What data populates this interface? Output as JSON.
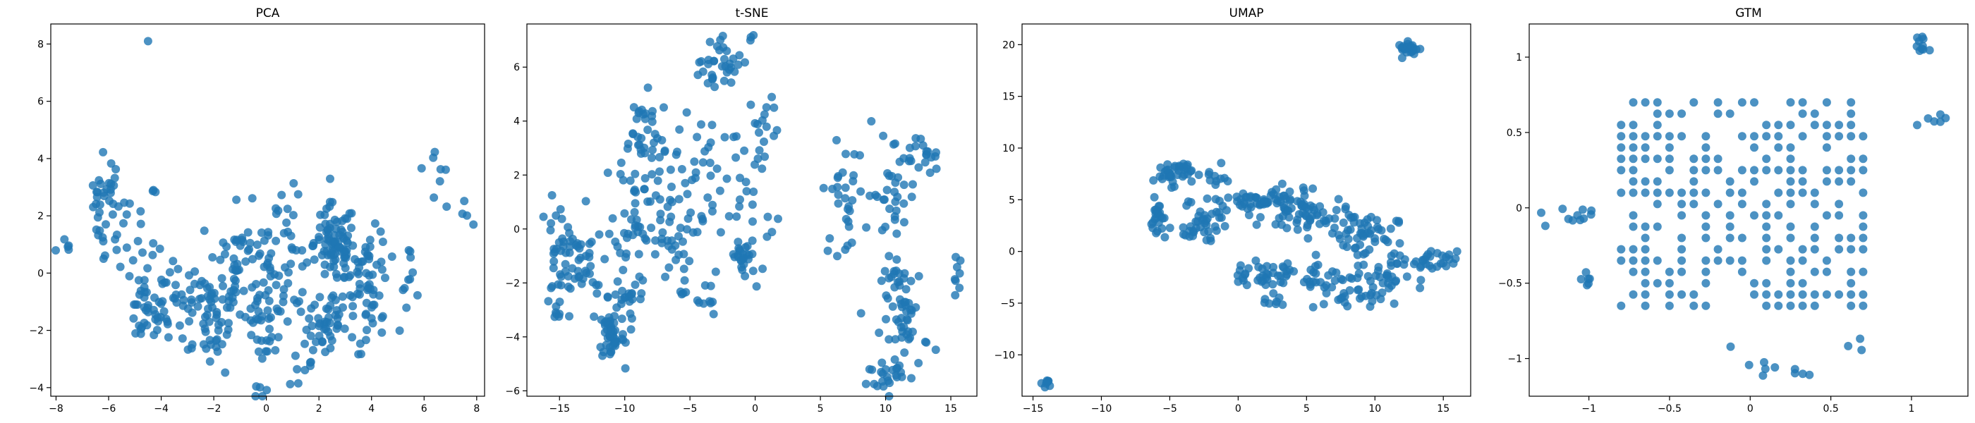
{
  "figure": {
    "background": "#ffffff",
    "point_color": "#1f77b4",
    "point_alpha": 0.8
  },
  "chart_data": [
    {
      "type": "scatter",
      "title": "PCA",
      "xlabel": "",
      "ylabel": "",
      "xlim": [
        -8.2,
        8.3
      ],
      "ylim": [
        -4.3,
        8.7
      ],
      "xticks": [
        -8,
        -6,
        -4,
        -2,
        0,
        2,
        4,
        6,
        8
      ],
      "yticks": [
        -4,
        -2,
        0,
        2,
        4,
        6,
        8
      ],
      "grid": false,
      "legend": "none",
      "clusters": [
        {
          "center": [
            -4.5,
            8.1
          ],
          "spread": [
            0.0,
            0.0
          ],
          "count": 1
        },
        {
          "center": [
            -7.6,
            0.9
          ],
          "spread": [
            0.2,
            0.2
          ],
          "count": 5
        },
        {
          "center": [
            -6.1,
            2.6
          ],
          "spread": [
            0.3,
            0.8
          ],
          "count": 30
        },
        {
          "center": [
            -5.2,
            1.4
          ],
          "spread": [
            0.6,
            1.0
          ],
          "count": 25
        },
        {
          "center": [
            -4.6,
            -1.5
          ],
          "spread": [
            0.4,
            0.5
          ],
          "count": 30
        },
        {
          "center": [
            -3.6,
            -0.7
          ],
          "spread": [
            0.6,
            0.8
          ],
          "count": 30
        },
        {
          "center": [
            -2.2,
            -1.4
          ],
          "spread": [
            0.7,
            1.0
          ],
          "count": 60
        },
        {
          "center": [
            -1.1,
            0.3
          ],
          "spread": [
            0.7,
            1.0
          ],
          "count": 50
        },
        {
          "center": [
            0.0,
            -1.0
          ],
          "spread": [
            0.4,
            1.4
          ],
          "count": 60
        },
        {
          "center": [
            0.9,
            0.8
          ],
          "spread": [
            0.5,
            1.0
          ],
          "count": 25
        },
        {
          "center": [
            1.9,
            -2.4
          ],
          "spread": [
            0.5,
            0.8
          ],
          "count": 30
        },
        {
          "center": [
            2.6,
            1.0
          ],
          "spread": [
            0.4,
            0.7
          ],
          "count": 80
        },
        {
          "center": [
            2.8,
            -1.6
          ],
          "spread": [
            0.5,
            0.6
          ],
          "count": 30
        },
        {
          "center": [
            3.9,
            0.3
          ],
          "spread": [
            0.4,
            0.6
          ],
          "count": 40
        },
        {
          "center": [
            4.0,
            -1.8
          ],
          "spread": [
            0.3,
            0.5
          ],
          "count": 15
        },
        {
          "center": [
            5.3,
            0.0
          ],
          "spread": [
            0.4,
            0.5
          ],
          "count": 12
        },
        {
          "center": [
            6.6,
            3.6
          ],
          "spread": [
            0.3,
            0.7
          ],
          "count": 8
        },
        {
          "center": [
            7.4,
            2.2
          ],
          "spread": [
            0.2,
            0.3
          ],
          "count": 4
        }
      ]
    },
    {
      "type": "scatter",
      "title": "t-SNE",
      "xlabel": "",
      "ylabel": "",
      "xlim": [
        -17.5,
        17.0
      ],
      "ylim": [
        -6.2,
        7.6
      ],
      "xticks": [
        -15,
        -10,
        -5,
        0,
        5,
        10,
        15
      ],
      "yticks": [
        -6,
        -4,
        -2,
        0,
        2,
        4,
        6
      ],
      "grid": false,
      "legend": "none",
      "clusters": [
        {
          "center": [
            -14.8,
            -1.0
          ],
          "spread": [
            0.9,
            1.0
          ],
          "count": 45
        },
        {
          "center": [
            -15.3,
            -3.2
          ],
          "spread": [
            0.2,
            0.2
          ],
          "count": 6
        },
        {
          "center": [
            -13.0,
            -1.8
          ],
          "spread": [
            0.9,
            0.8
          ],
          "count": 25
        },
        {
          "center": [
            -11.0,
            -3.9
          ],
          "spread": [
            0.5,
            0.5
          ],
          "count": 45
        },
        {
          "center": [
            -9.8,
            -2.6
          ],
          "spread": [
            0.8,
            0.9
          ],
          "count": 30
        },
        {
          "center": [
            -9.2,
            1.0
          ],
          "spread": [
            0.8,
            1.0
          ],
          "count": 40
        },
        {
          "center": [
            -8.8,
            3.6
          ],
          "spread": [
            0.9,
            0.7
          ],
          "count": 30
        },
        {
          "center": [
            -6.8,
            -0.5
          ],
          "spread": [
            1.0,
            1.0
          ],
          "count": 35
        },
        {
          "center": [
            -5.0,
            2.2
          ],
          "spread": [
            1.2,
            1.2
          ],
          "count": 40
        },
        {
          "center": [
            -4.0,
            -2.6
          ],
          "spread": [
            0.7,
            0.5
          ],
          "count": 12
        },
        {
          "center": [
            -3.5,
            5.7
          ],
          "spread": [
            0.7,
            0.5
          ],
          "count": 15
        },
        {
          "center": [
            -2.0,
            6.2
          ],
          "spread": [
            0.7,
            0.5
          ],
          "count": 20
        },
        {
          "center": [
            -0.3,
            7.0
          ],
          "spread": [
            0.2,
            0.1
          ],
          "count": 3
        },
        {
          "center": [
            -0.8,
            -1.1
          ],
          "spread": [
            0.6,
            0.4
          ],
          "count": 25
        },
        {
          "center": [
            -0.4,
            1.8
          ],
          "spread": [
            1.0,
            1.5
          ],
          "count": 30
        },
        {
          "center": [
            0.8,
            4.0
          ],
          "spread": [
            0.6,
            0.5
          ],
          "count": 10
        },
        {
          "center": [
            6.8,
            1.1
          ],
          "spread": [
            0.8,
            1.0
          ],
          "count": 30
        },
        {
          "center": [
            10.5,
            1.3
          ],
          "spread": [
            1.0,
            1.2
          ],
          "count": 35
        },
        {
          "center": [
            12.5,
            2.7
          ],
          "spread": [
            0.8,
            0.4
          ],
          "count": 20
        },
        {
          "center": [
            11.5,
            -3.3
          ],
          "spread": [
            0.9,
            1.1
          ],
          "count": 60
        },
        {
          "center": [
            10.0,
            -5.4
          ],
          "spread": [
            0.7,
            0.2
          ],
          "count": 20
        },
        {
          "center": [
            15.5,
            -1.8
          ],
          "spread": [
            0.2,
            0.4
          ],
          "count": 8
        }
      ]
    },
    {
      "type": "scatter",
      "title": "UMAP",
      "xlabel": "",
      "ylabel": "",
      "xlim": [
        -15.8,
        17.0
      ],
      "ylim": [
        -14.0,
        22.0
      ],
      "xticks": [
        -15,
        -10,
        -5,
        0,
        5,
        10,
        15
      ],
      "yticks": [
        -10,
        -5,
        0,
        5,
        10,
        15,
        20
      ],
      "grid": false,
      "legend": "none",
      "clusters": [
        {
          "center": [
            12.5,
            19.6
          ],
          "spread": [
            0.4,
            0.3
          ],
          "count": 25
        },
        {
          "center": [
            -13.9,
            -12.7
          ],
          "spread": [
            0.2,
            0.2
          ],
          "count": 8
        },
        {
          "center": [
            -4.8,
            7.6
          ],
          "spread": [
            0.7,
            0.6
          ],
          "count": 40
        },
        {
          "center": [
            -5.8,
            3.0
          ],
          "spread": [
            0.3,
            1.0
          ],
          "count": 25
        },
        {
          "center": [
            -1.7,
            7.0
          ],
          "spread": [
            0.4,
            0.6
          ],
          "count": 10
        },
        {
          "center": [
            -2.3,
            3.0
          ],
          "spread": [
            0.8,
            0.8
          ],
          "count": 25
        },
        {
          "center": [
            -3.2,
            1.6
          ],
          "spread": [
            0.7,
            0.3
          ],
          "count": 10
        },
        {
          "center": [
            1.5,
            4.8
          ],
          "spread": [
            2.0,
            0.6
          ],
          "count": 60
        },
        {
          "center": [
            5.0,
            3.5
          ],
          "spread": [
            1.5,
            1.0
          ],
          "count": 60
        },
        {
          "center": [
            2.0,
            -2.2
          ],
          "spread": [
            1.5,
            0.5
          ],
          "count": 35
        },
        {
          "center": [
            6.0,
            -2.4
          ],
          "spread": [
            1.5,
            0.7
          ],
          "count": 30
        },
        {
          "center": [
            9.0,
            1.5
          ],
          "spread": [
            1.3,
            1.2
          ],
          "count": 50
        },
        {
          "center": [
            10.5,
            -2.5
          ],
          "spread": [
            1.0,
            1.0
          ],
          "count": 30
        },
        {
          "center": [
            8.0,
            -4.8
          ],
          "spread": [
            1.3,
            0.6
          ],
          "count": 20
        },
        {
          "center": [
            14.0,
            -1.0
          ],
          "spread": [
            1.0,
            0.5
          ],
          "count": 30
        },
        {
          "center": [
            2.5,
            -4.6
          ],
          "spread": [
            0.5,
            0.4
          ],
          "count": 8
        }
      ]
    },
    {
      "type": "scatter",
      "title": "GTM",
      "xlabel": "",
      "ylabel": "",
      "xlim": [
        -1.37,
        1.35
      ],
      "ylim": [
        -1.25,
        1.22
      ],
      "xticks": [
        -1.0,
        -0.5,
        0.0,
        0.5,
        1.0
      ],
      "yticks": [
        -1.0,
        -0.5,
        0.0,
        0.5,
        1.0
      ],
      "grid": false,
      "legend": "none",
      "lattice_x_range": [
        -0.8,
        0.75
      ],
      "lattice_y_range": [
        -0.65,
        0.75
      ],
      "lattice_step": 0.075,
      "clusters": [
        {
          "center": [
            1.05,
            1.05
          ],
          "spread": [
            0.03,
            0.05
          ],
          "count": 10
        },
        {
          "center": [
            1.15,
            0.62
          ],
          "spread": [
            0.07,
            0.05
          ],
          "count": 6
        },
        {
          "center": [
            -1.07,
            -0.05
          ],
          "spread": [
            0.12,
            0.05
          ],
          "count": 10
        },
        {
          "center": [
            -1.0,
            -0.47
          ],
          "spread": [
            0.02,
            0.02
          ],
          "count": 6
        },
        {
          "center": [
            -1.27,
            -0.12
          ],
          "spread": [
            0.0,
            0.0
          ],
          "count": 1
        },
        {
          "center": [
            0.05,
            -1.05
          ],
          "spread": [
            0.07,
            0.07
          ],
          "count": 6
        },
        {
          "center": [
            0.3,
            -1.1
          ],
          "spread": [
            0.03,
            0.02
          ],
          "count": 4
        },
        {
          "center": [
            0.65,
            -0.85
          ],
          "spread": [
            0.03,
            0.05
          ],
          "count": 3
        }
      ]
    }
  ]
}
